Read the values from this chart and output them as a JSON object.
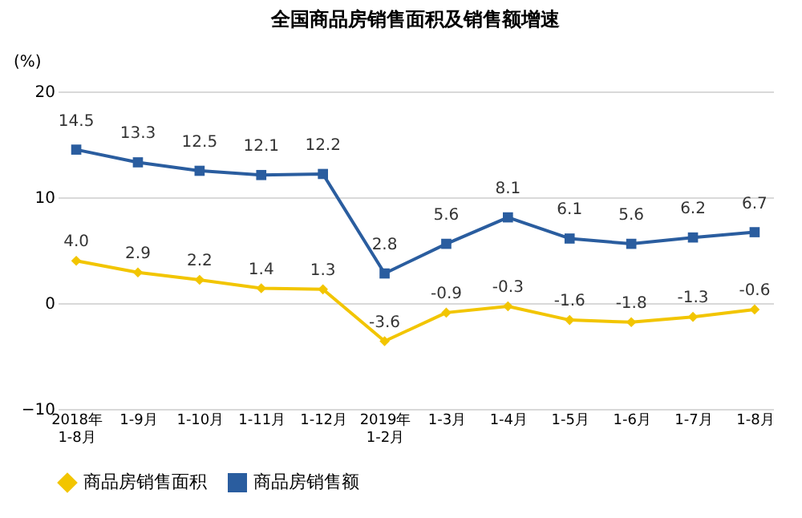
{
  "chart_data": {
    "type": "line",
    "title": "全国商品房销售面积及销售额增速",
    "ylabel": "(%)",
    "categories": [
      "2018年\n1-8月",
      "1-9月",
      "1-10月",
      "1-11月",
      "1-12月",
      "2019年\n1-2月",
      "1-3月",
      "1-4月",
      "1-5月",
      "1-6月",
      "1-7月",
      "1-8月"
    ],
    "series": [
      {
        "name": "商品房销售面积",
        "color": "#f2c500",
        "marker": "diamond",
        "values": [
          4.0,
          2.9,
          2.2,
          1.4,
          1.3,
          -3.6,
          -0.9,
          -0.3,
          -1.6,
          -1.8,
          -1.3,
          -0.6
        ],
        "value_labels": [
          "4.0",
          "2.9",
          "2.2",
          "1.4",
          "1.3",
          "-3.6",
          "-0.9",
          "-0.3",
          "-1.6",
          "-1.8",
          "-1.3",
          "-0.6"
        ]
      },
      {
        "name": "商品房销售额",
        "color": "#2a5d9f",
        "marker": "square",
        "values": [
          14.5,
          13.3,
          12.5,
          12.1,
          12.2,
          2.8,
          5.6,
          8.1,
          6.1,
          5.6,
          6.2,
          6.7
        ],
        "value_labels": [
          "14.5",
          "13.3",
          "12.5",
          "12.1",
          "12.2",
          "2.8",
          "5.6",
          "8.1",
          "6.1",
          "5.6",
          "6.2",
          "6.7"
        ]
      }
    ],
    "ylim": [
      -10,
      20
    ],
    "yticks": [
      -10,
      0,
      10,
      20
    ],
    "grid": "y",
    "legend": "bottom"
  }
}
